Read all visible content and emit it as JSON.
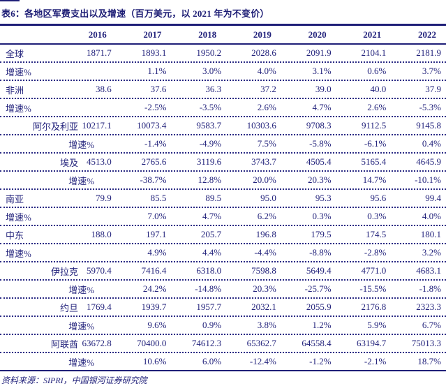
{
  "title": "表6：各地区军费支出以及增速（百万美元，以 2021 年为不变价）",
  "source_note": "资料来源：SIPRI，中国银河证券研究院",
  "colors": {
    "text_navy": "#23237c",
    "border_navy": "#1f1f78",
    "background": "#ffffff"
  },
  "chart_data": {
    "type": "table",
    "title": "表6：各地区军费支出以及增速（百万美元，以 2021 年为不变价）",
    "columns": [
      "2016",
      "2017",
      "2018",
      "2019",
      "2020",
      "2021",
      "2022"
    ],
    "rows": [
      {
        "label": "全球",
        "type": "region",
        "values": [
          "1871.7",
          "1893.1",
          "1950.2",
          "2028.6",
          "2091.9",
          "2104.1",
          "2181.9"
        ]
      },
      {
        "label": "增速%",
        "type": "region-growth",
        "values": [
          "",
          "1.1%",
          "3.0%",
          "4.0%",
          "3.1%",
          "0.6%",
          "3.7%"
        ]
      },
      {
        "label": "非洲",
        "type": "region",
        "values": [
          "38.6",
          "37.6",
          "36.3",
          "37.2",
          "39.0",
          "40.0",
          "37.9"
        ]
      },
      {
        "label": "增速%",
        "type": "region-growth",
        "values": [
          "",
          "-2.5%",
          "-3.5%",
          "2.6%",
          "4.7%",
          "2.6%",
          "-5.3%"
        ]
      },
      {
        "label": "阿尔及利亚",
        "type": "country",
        "values": [
          "10217.1",
          "10073.4",
          "9583.7",
          "10303.6",
          "9708.3",
          "9112.5",
          "9145.8"
        ]
      },
      {
        "label": "增速%",
        "type": "country-growth",
        "values": [
          "",
          "-1.4%",
          "-4.9%",
          "7.5%",
          "-5.8%",
          "-6.1%",
          "0.4%"
        ]
      },
      {
        "label": "埃及",
        "type": "country",
        "values": [
          "4513.0",
          "2765.6",
          "3119.6",
          "3743.7",
          "4505.4",
          "5165.4",
          "4645.9"
        ]
      },
      {
        "label": "增速%",
        "type": "country-growth",
        "values": [
          "",
          "-38.7%",
          "12.8%",
          "20.0%",
          "20.3%",
          "14.7%",
          "-10.1%"
        ]
      },
      {
        "label": "南亚",
        "type": "region",
        "values": [
          "79.9",
          "85.5",
          "89.5",
          "95.0",
          "95.3",
          "95.6",
          "99.4"
        ]
      },
      {
        "label": "增速%",
        "type": "region-growth",
        "values": [
          "",
          "7.0%",
          "4.7%",
          "6.2%",
          "0.3%",
          "0.3%",
          "4.0%"
        ]
      },
      {
        "label": "中东",
        "type": "region",
        "values": [
          "188.0",
          "197.1",
          "205.7",
          "196.8",
          "179.5",
          "174.5",
          "180.1"
        ]
      },
      {
        "label": "增速%",
        "type": "region-growth",
        "values": [
          "",
          "4.9%",
          "4.4%",
          "-4.4%",
          "-8.8%",
          "-2.8%",
          "3.2%"
        ]
      },
      {
        "label": "伊拉克",
        "type": "country",
        "values": [
          "5970.4",
          "7416.4",
          "6318.0",
          "7598.8",
          "5649.4",
          "4771.0",
          "4683.1"
        ]
      },
      {
        "label": "增速%",
        "type": "country-growth",
        "values": [
          "",
          "24.2%",
          "-14.8%",
          "20.3%",
          "-25.7%",
          "-15.5%",
          "-1.8%"
        ]
      },
      {
        "label": "约旦",
        "type": "country",
        "values": [
          "1769.4",
          "1939.7",
          "1957.7",
          "2032.1",
          "2055.9",
          "2176.8",
          "2323.3"
        ]
      },
      {
        "label": "增速%",
        "type": "country-growth",
        "values": [
          "",
          "9.6%",
          "0.9%",
          "3.8%",
          "1.2%",
          "5.9%",
          "6.7%"
        ]
      },
      {
        "label": "阿联酋",
        "type": "country",
        "values": [
          "63672.8",
          "70400.0",
          "74612.3",
          "65362.7",
          "64558.4",
          "63194.7",
          "75013.3"
        ]
      },
      {
        "label": "增速%",
        "type": "country-growth",
        "values": [
          "",
          "10.6%",
          "6.0%",
          "-12.4%",
          "-1.2%",
          "-2.1%",
          "18.7%"
        ]
      }
    ]
  }
}
